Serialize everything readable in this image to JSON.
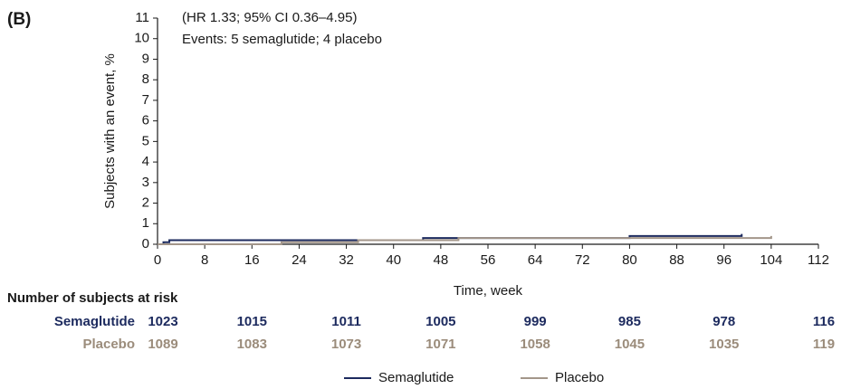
{
  "chart_data": {
    "type": "step-line",
    "panel_label": "(B)",
    "annotations": [
      "(HR 1.33; 95% CI 0.36–4.95)",
      "Events: 5 semaglutide; 4 placebo"
    ],
    "xlabel": "Time, week",
    "ylabel": "Subjects with an event, %",
    "xlim": [
      0,
      112
    ],
    "ylim": [
      0,
      11
    ],
    "xticks": [
      0,
      8,
      16,
      24,
      32,
      40,
      48,
      56,
      64,
      72,
      80,
      88,
      96,
      104,
      112
    ],
    "yticks": [
      0,
      1,
      2,
      3,
      4,
      5,
      6,
      7,
      8,
      9,
      10,
      11
    ],
    "series": [
      {
        "name": "Semaglutide",
        "color": "#1c2a5e",
        "x": [
          0,
          1,
          1,
          2,
          2,
          45,
          45,
          80,
          80,
          99,
          99
        ],
        "values": [
          0,
          0,
          0.1,
          0.1,
          0.2,
          0.2,
          0.3,
          0.3,
          0.4,
          0.4,
          0.5
        ]
      },
      {
        "name": "Placebo",
        "color": "#a3968a",
        "x": [
          0,
          21,
          21,
          34,
          34,
          51,
          51,
          104,
          104
        ],
        "values": [
          0,
          0,
          0.1,
          0.1,
          0.2,
          0.2,
          0.3,
          0.3,
          0.4
        ]
      }
    ],
    "risk_table": {
      "title": "Number of subjects at risk",
      "rows": [
        {
          "name": "Semaglutide",
          "color": "#1c2a5e",
          "values": [
            1023,
            1015,
            1011,
            1005,
            999,
            985,
            978,
            116
          ]
        },
        {
          "name": "Placebo",
          "color": "#9b8c7b",
          "values": [
            1089,
            1083,
            1073,
            1071,
            1058,
            1045,
            1035,
            119
          ]
        }
      ]
    }
  }
}
